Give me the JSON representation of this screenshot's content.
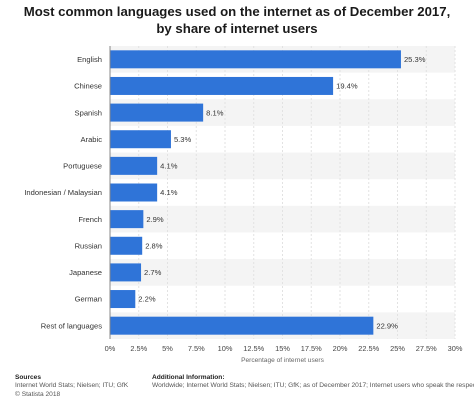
{
  "title_line1": "Most common languages used on the internet as of December 2017,",
  "title_line2": "by share of internet users",
  "chart_data": {
    "type": "bar",
    "orientation": "horizontal",
    "categories": [
      "English",
      "Chinese",
      "Spanish",
      "Arabic",
      "Portuguese",
      "Indonesian / Malaysian",
      "French",
      "Russian",
      "Japanese",
      "German",
      "Rest of languages"
    ],
    "values": [
      25.3,
      19.4,
      8.1,
      5.3,
      4.1,
      4.1,
      2.9,
      2.8,
      2.7,
      2.2,
      22.9
    ],
    "value_labels": [
      "25.3%",
      "19.4%",
      "8.1%",
      "5.3%",
      "4.1%",
      "4.1%",
      "2.9%",
      "2.8%",
      "2.7%",
      "2.2%",
      "22.9%"
    ],
    "xlabel": "Percentage of internet users",
    "xlim": [
      0,
      30
    ],
    "xticks": [
      0,
      2.5,
      5,
      7.5,
      10,
      12.5,
      15,
      17.5,
      20,
      22.5,
      25,
      27.5,
      30
    ],
    "xtick_labels": [
      "0%",
      "2.5%",
      "5%",
      "7.5%",
      "10%",
      "12.5%",
      "15%",
      "17.5%",
      "20%",
      "22.5%",
      "25%",
      "27.5%",
      "30%"
    ],
    "bar_color": "#2f74d8",
    "grid": true
  },
  "footer": {
    "sources_title": "Sources",
    "sources_line1": "Internet World Stats; Nielsen; ITU; GfK",
    "sources_line2": "© Statista 2018",
    "info_title": "Additional Information:",
    "info_line1": "Worldwide; Internet World Stats; Nielsen; ITU; GfK; as of December 2017; Internet users who speak the respective"
  }
}
